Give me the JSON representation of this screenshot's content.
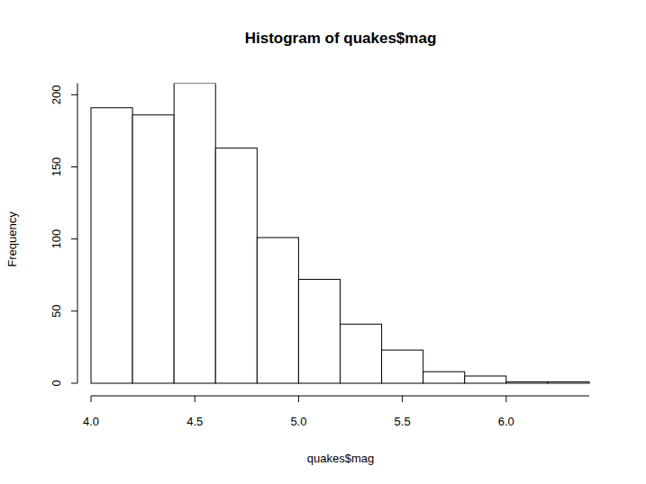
{
  "chart_data": {
    "type": "histogram",
    "title": "Histogram of quakes$mag",
    "x_label": "quakes$mag",
    "y_label": "Frequency",
    "bins": [
      4.0,
      4.2,
      4.4,
      4.6,
      4.8,
      5.0,
      5.2,
      5.4,
      5.6,
      5.8,
      6.0,
      6.2,
      6.4
    ],
    "values": [
      191,
      186,
      208,
      163,
      101,
      72,
      41,
      23,
      8,
      5,
      1,
      1
    ],
    "color": "#ffffff",
    "xlim": [
      4.0,
      6.4
    ],
    "xticks": [
      {
        "value": 4.0,
        "label": "4.0"
      },
      4.5,
      {
        "value": 5.0,
        "label": "5.0"
      },
      5.5,
      {
        "value": 6.0,
        "label": "6.0"
      }
    ],
    "ylim": [
      0,
      208
    ],
    "yticks": [
      0,
      50,
      100,
      150,
      200
    ],
    "grid": false
  }
}
